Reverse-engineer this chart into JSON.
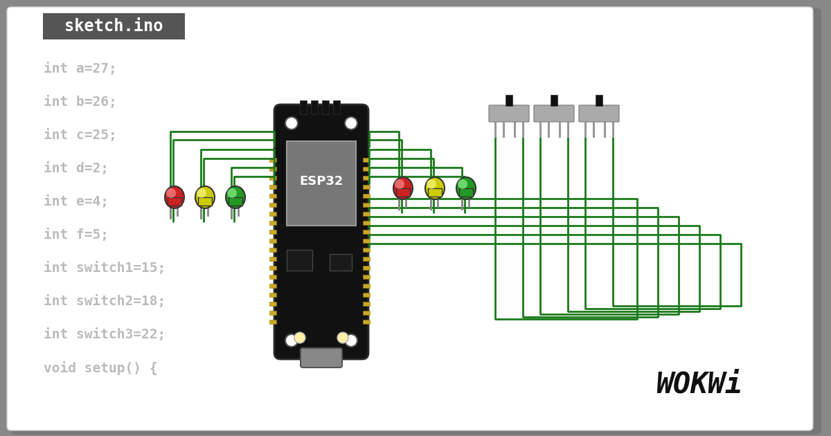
{
  "bg_color": "#ffffff",
  "outer_bg": "#888888",
  "title_bg": "#555555",
  "title_text": "sketch.ino",
  "title_color": "#ffffff",
  "code_lines": [
    "int a=27;",
    "int b=26;",
    "int c=25;",
    "int d=2;",
    "int e=4;",
    "int f=5;",
    "int switch1=15;",
    "int switch2=18;",
    "int switch3=22;",
    "void setup() {"
  ],
  "code_color": "#bbbbbb",
  "wire_color": "#1a7a1a",
  "esp32_bg": "#111111",
  "esp32_chip_color": "#777777",
  "esp32_text": "ESP32",
  "led_left_colors": [
    "#cc2222",
    "#cccc00",
    "#229922"
  ],
  "led_right_colors": [
    "#cc2222",
    "#cccc00",
    "#229922"
  ],
  "led_highlight": [
    "#ff9999",
    "#ffff99",
    "#99ff99"
  ],
  "wokwi_color": "#111111",
  "btn_body_color": "#aaaaaa",
  "btn_leg_color": "#999999"
}
